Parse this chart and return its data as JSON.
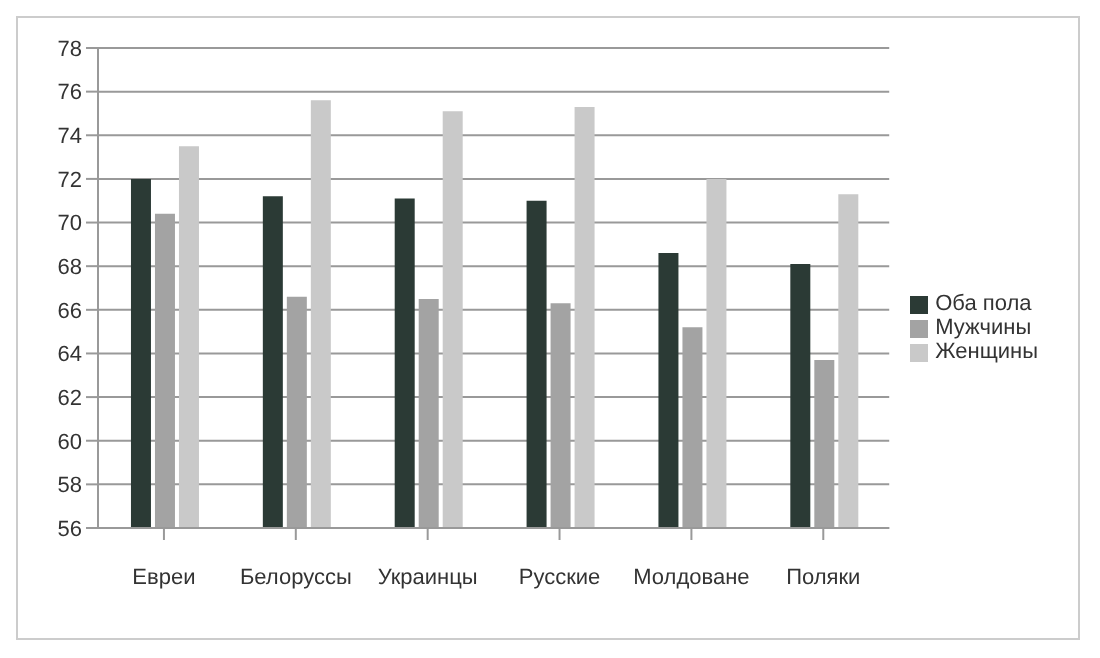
{
  "chart_data": {
    "type": "bar",
    "categories": [
      "Евреи",
      "Белоруссы",
      "Украинцы",
      "Русские",
      "Молдоване",
      "Поляки"
    ],
    "series": [
      {
        "name": "Оба пола",
        "color": "#2b3a35",
        "values": [
          72.0,
          71.2,
          71.1,
          71.0,
          68.6,
          68.1
        ]
      },
      {
        "name": "Мужчины",
        "color": "#a3a3a3",
        "values": [
          70.4,
          66.6,
          66.5,
          66.3,
          65.2,
          63.7
        ]
      },
      {
        "name": "Женщины",
        "color": "#c9c9c9",
        "values": [
          73.5,
          75.6,
          75.1,
          75.3,
          72.0,
          71.3
        ]
      }
    ],
    "ylim": [
      56,
      78
    ],
    "yticks": [
      56,
      58,
      60,
      62,
      64,
      66,
      68,
      70,
      72,
      74,
      76,
      78
    ],
    "grid": "y",
    "legend": "right"
  }
}
